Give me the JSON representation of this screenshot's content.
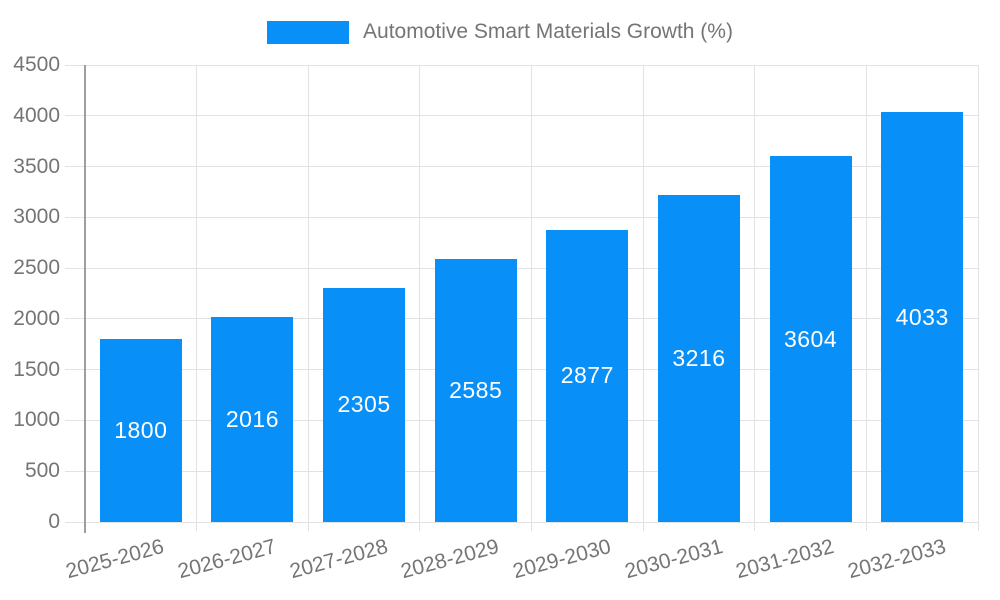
{
  "legend": {
    "label": "Automotive Smart Materials Growth (%)"
  },
  "colors": {
    "bar": "#0890F8",
    "grid": "#e2e2e2",
    "axis": "#9e9e9e",
    "tick_text": "#757575",
    "bar_label": "#ffffff"
  },
  "chart_data": {
    "type": "bar",
    "title": "Automotive Smart Materials Growth (%)",
    "series": [
      {
        "name": "Automotive Smart Materials Growth (%)",
        "values": [
          1800,
          2016,
          2305,
          2585,
          2877,
          3216,
          3604,
          4033
        ]
      }
    ],
    "categories": [
      "2025-2026",
      "2026-2027",
      "2027-2028",
      "2028-2029",
      "2029-2030",
      "2030-2031",
      "2031-2032",
      "2032-2033"
    ],
    "xlabel": "",
    "ylabel": "",
    "ylim": [
      0,
      4500
    ],
    "ytick_step": 500,
    "yticks": [
      0,
      500,
      1000,
      1500,
      2000,
      2500,
      3000,
      3500,
      4000,
      4500
    ],
    "grid": "horizontal-and-vertical",
    "legend_position": "top-center",
    "value_labels": "inside-center",
    "x_tick_rotation_deg": -15
  }
}
